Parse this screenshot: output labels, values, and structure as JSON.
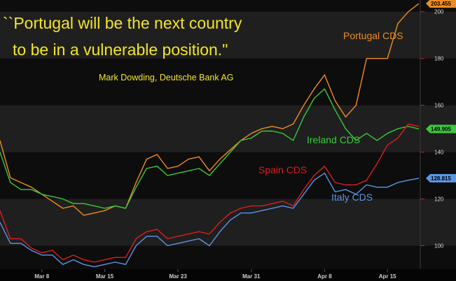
{
  "quote": {
    "line1": "``Portugal will be the next country",
    "line2": "to be in a vulnerable position.\"",
    "attribution": "Mark Dowding, Deutsche Bank AG"
  },
  "colors": {
    "quote": "#f2e62a",
    "background_dark": "#0d0d0d",
    "band_light": "#1f1f1f",
    "axis_tick": "#cc2222"
  },
  "chart_data": {
    "type": "line",
    "x_labels": [
      "Mar 8",
      "Mar 15",
      "Mar 23",
      "Mar 31",
      "Apr 8",
      "Apr 15"
    ],
    "x_label_index": [
      4,
      10,
      17,
      24,
      31,
      37
    ],
    "n_points": 41,
    "ylim": [
      90,
      205
    ],
    "y_ticks": [
      100,
      120,
      140,
      160,
      180,
      200
    ],
    "y_tick_labels": [
      "100",
      "120",
      "140",
      "160",
      "180",
      "200"
    ],
    "grid": "alternating horizontal bands",
    "series": [
      {
        "name": "Portugal CDS",
        "color": "#f08c1e",
        "last_value": "203.455",
        "values": [
          145,
          129,
          127,
          125,
          122,
          119,
          116,
          117,
          113,
          114,
          115,
          117,
          116,
          127,
          137,
          139,
          133,
          134,
          137,
          138,
          132,
          137,
          141,
          145,
          148,
          150,
          151,
          150,
          152,
          160,
          167,
          173,
          162,
          155,
          160,
          180,
          180,
          180,
          195,
          200,
          203.455
        ]
      },
      {
        "name": "Ireland CDS",
        "color": "#3cc83c",
        "last_value": "149.905",
        "values": [
          140,
          127,
          124,
          124,
          122,
          121,
          120,
          118,
          118,
          117,
          116,
          117,
          116,
          125,
          133,
          134,
          130,
          131,
          132,
          133,
          130,
          135,
          140,
          145,
          146,
          149,
          149,
          148,
          145,
          155,
          163,
          167,
          158,
          150,
          145,
          148,
          145,
          148,
          150,
          151,
          149.905
        ]
      },
      {
        "name": "Spain CDS",
        "color": "#dc1e1e",
        "last_value": "",
        "values": [
          115,
          103,
          103,
          99,
          97,
          98,
          94,
          96,
          94,
          93,
          94,
          95,
          95,
          103,
          106,
          107,
          103,
          104,
          105,
          106,
          105,
          110,
          114,
          116,
          117,
          117,
          118,
          119,
          117,
          124,
          130,
          134,
          127,
          126,
          126,
          128,
          135,
          143,
          146,
          152,
          151
        ]
      },
      {
        "name": "Italy CDS",
        "color": "#5a96e6",
        "last_value": "128.815",
        "values": [
          110,
          101,
          101,
          98,
          96,
          96,
          92,
          94,
          92,
          91,
          92,
          93,
          92,
          100,
          104,
          104,
          100,
          101,
          102,
          103,
          100,
          106,
          111,
          114,
          114,
          115,
          116,
          117,
          116,
          122,
          128,
          131,
          123,
          124,
          122,
          126,
          125,
          125,
          127,
          128,
          128.815
        ]
      }
    ],
    "labels_on_chart": [
      {
        "series": "Portugal CDS",
        "text": "Portugal CDS"
      },
      {
        "series": "Ireland CDS",
        "text": "Ireland CDS"
      },
      {
        "series": "Spain CDS",
        "text": "Spain CDS"
      },
      {
        "series": "Italy CDS",
        "text": "Italy CDS"
      }
    ]
  }
}
